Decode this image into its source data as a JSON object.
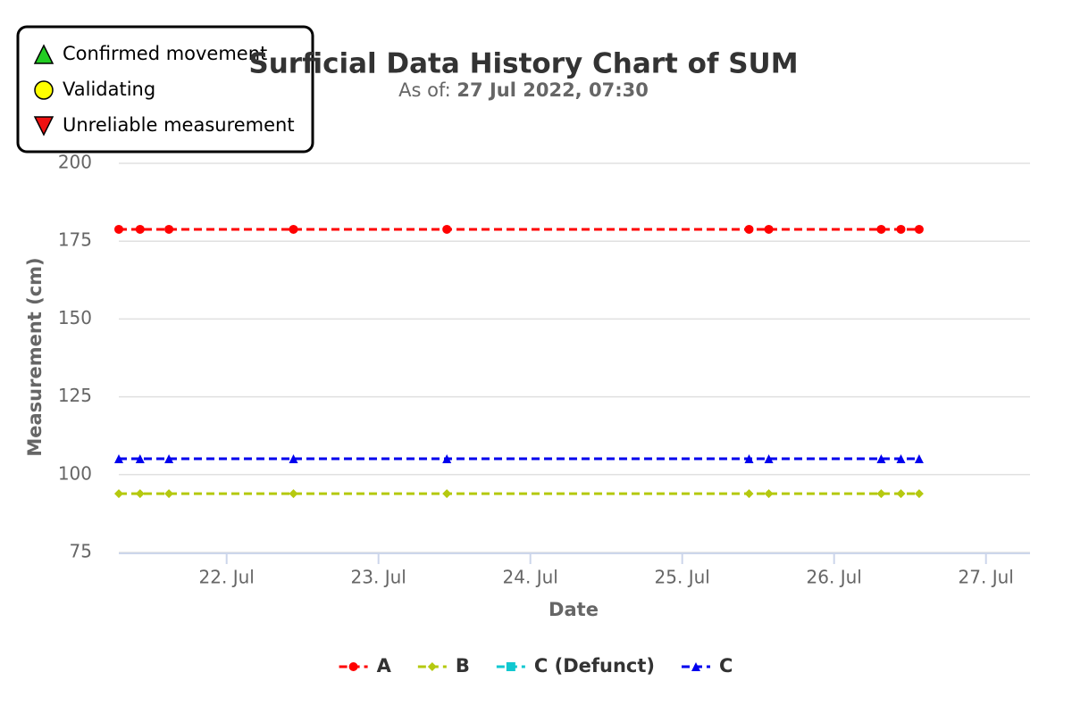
{
  "chart_data": {
    "type": "line",
    "title": "Surficial Data History Chart of SUM",
    "subtitle": {
      "label": "As of:",
      "value": "27 Jul 2022, 07:30"
    },
    "x_label": "Date",
    "y_label": "Measurement (cm)",
    "x": [
      21.29,
      21.43,
      21.62,
      22.44,
      23.45,
      25.44,
      25.57,
      26.31,
      26.44,
      26.56
    ],
    "series": [
      {
        "name": "A",
        "color": "#ff0000",
        "marker": "circle",
        "values": [
          178.8,
          178.8,
          178.8,
          178.8,
          178.8,
          178.8,
          178.8,
          178.8,
          178.8,
          178.8
        ]
      },
      {
        "name": "B",
        "color": "#b5c90f",
        "marker": "diamond",
        "values": [
          93.9,
          93.9,
          93.9,
          93.9,
          93.9,
          93.9,
          93.9,
          93.9,
          93.9,
          93.9
        ]
      },
      {
        "name": "C (Defunct)",
        "color": "#11c8d0",
        "marker": "square",
        "values": [
          null,
          null,
          null,
          null,
          null,
          null,
          null,
          null,
          null,
          null
        ]
      },
      {
        "name": "C",
        "color": "#0000ee",
        "marker": "triangle",
        "values": [
          105.1,
          105.1,
          105.1,
          105.1,
          105.1,
          105.1,
          105.1,
          105.1,
          105.1,
          105.1
        ]
      }
    ],
    "xlim": [
      21.29,
      27.29
    ],
    "xticks": [
      {
        "value": 22,
        "label": "22. Jul"
      },
      {
        "value": 23,
        "label": "23. Jul"
      },
      {
        "value": 24,
        "label": "24. Jul"
      },
      {
        "value": 25,
        "label": "25. Jul"
      },
      {
        "value": 26,
        "label": "26. Jul"
      },
      {
        "value": 27,
        "label": "27. Jul"
      }
    ],
    "ylim": [
      75,
      200
    ],
    "yticks": [
      75,
      100,
      125,
      150,
      175,
      200
    ],
    "grid": true,
    "legend": "bottom",
    "status_legend": [
      {
        "label": "Confirmed movement",
        "color": "#22cc22",
        "marker": "triangle"
      },
      {
        "label": "Validating",
        "color": "#ffff00",
        "marker": "circle"
      },
      {
        "label": "Unreliable measurement",
        "color": "#ee1111",
        "marker": "triangle-down"
      }
    ]
  }
}
